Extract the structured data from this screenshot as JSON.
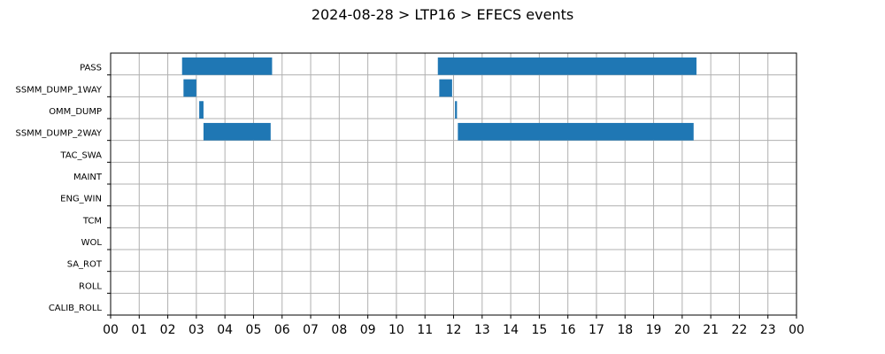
{
  "chart_data": {
    "type": "bar",
    "orientation": "horizontal-timeline",
    "title": "2024-08-28 > LTP16 > EFECS events",
    "categories": [
      "PASS",
      "SSMM_DUMP_1WAY",
      "OMM_DUMP",
      "SSMM_DUMP_2WAY",
      "TAC_SWA",
      "MAINT",
      "ENG_WIN",
      "TCM",
      "WOL",
      "SA_ROT",
      "ROLL",
      "CALIB_ROLL"
    ],
    "x_tick_labels": [
      "00",
      "01",
      "02",
      "03",
      "04",
      "05",
      "06",
      "07",
      "08",
      "09",
      "10",
      "11",
      "12",
      "13",
      "14",
      "15",
      "16",
      "17",
      "18",
      "19",
      "20",
      "21",
      "22",
      "23",
      "00"
    ],
    "xlim": [
      0,
      24
    ],
    "x_unit": "hour",
    "grid": true,
    "bar_color": "#1f77b4",
    "events": [
      {
        "category": "PASS",
        "start": 2.5,
        "end": 5.65
      },
      {
        "category": "PASS",
        "start": 11.45,
        "end": 20.5
      },
      {
        "category": "SSMM_DUMP_1WAY",
        "start": 2.55,
        "end": 3.0
      },
      {
        "category": "SSMM_DUMP_1WAY",
        "start": 11.5,
        "end": 11.95
      },
      {
        "category": "OMM_DUMP",
        "start": 3.1,
        "end": 3.25
      },
      {
        "category": "OMM_DUMP",
        "start": 12.05,
        "end": 12.12
      },
      {
        "category": "SSMM_DUMP_2WAY",
        "start": 3.25,
        "end": 5.6
      },
      {
        "category": "SSMM_DUMP_2WAY",
        "start": 12.15,
        "end": 20.4
      }
    ]
  }
}
